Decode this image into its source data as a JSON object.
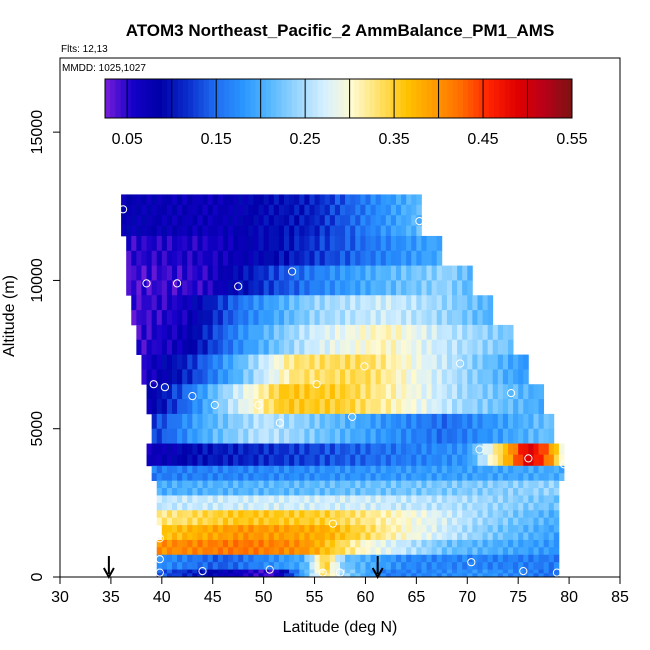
{
  "chart_data": {
    "type": "heatmap",
    "title": "ATOM3 Northeast_Pacific_2 AmmBalance_PM1_AMS",
    "flights_label": "Flts: 12,13",
    "dates_label": "MMDD: 1025,1027",
    "xlabel": "Latitude (deg N)",
    "ylabel": "Altitude (m)",
    "xlim": [
      30,
      85
    ],
    "ylim": [
      0,
      17500
    ],
    "x_ticks": [
      "30",
      "35",
      "40",
      "45",
      "50",
      "55",
      "60",
      "65",
      "70",
      "75",
      "80",
      "85"
    ],
    "y_ticks": [
      "0",
      "5000",
      "10000",
      "15000"
    ],
    "colorbar": {
      "min": 0.025,
      "max": 0.55,
      "tick_values": [
        0.05,
        0.15,
        0.25,
        0.35,
        0.45,
        0.55
      ],
      "tick_labels": [
        "0.05",
        "0.15",
        "0.25",
        "0.35",
        "0.45",
        "0.55"
      ],
      "colors": [
        "#7a1fd9",
        "#1500c8",
        "#0000a8",
        "#0a2ccc",
        "#1f6cf0",
        "#2a95ff",
        "#55b8ff",
        "#9ad6ff",
        "#d6f0ff",
        "#fffad0",
        "#ffe066",
        "#ffc200",
        "#ff9a00",
        "#ff6a00",
        "#ff2200",
        "#e00000",
        "#b80018",
        "#7a1414"
      ]
    },
    "extent": {
      "top_band_altitude": [
        12500,
        11500,
        10500,
        9500,
        8500,
        7500,
        6500,
        5500,
        4500,
        3750,
        3250,
        2750,
        2250,
        1750,
        1250,
        750,
        250
      ],
      "lat_start": [
        36.0,
        36.5,
        36.5,
        37.0,
        37.5,
        38.0,
        38.5,
        39.0,
        38.5,
        39.0,
        39.5,
        39.5,
        39.5,
        40.0,
        39.5,
        39.5,
        39.5
      ],
      "lat_end": [
        65.5,
        67.5,
        70.5,
        72.5,
        74.5,
        76.0,
        77.5,
        78.5,
        79.5,
        79.5,
        79.0,
        79.0,
        79.0,
        79.0,
        79.0,
        79.0,
        79.0
      ]
    },
    "flight_points": [
      {
        "lat": 36.2,
        "alt": 12400
      },
      {
        "lat": 65.3,
        "alt": 12000
      },
      {
        "lat": 72.2,
        "alt": 10300
      },
      {
        "lat": 52.8,
        "alt": 10300
      },
      {
        "lat": 38.5,
        "alt": 9900
      },
      {
        "lat": 41.5,
        "alt": 9900
      },
      {
        "lat": 47.5,
        "alt": 9800
      },
      {
        "lat": 37.3,
        "alt": 7200
      },
      {
        "lat": 59.9,
        "alt": 7100
      },
      {
        "lat": 69.3,
        "alt": 7200
      },
      {
        "lat": 39.2,
        "alt": 6500
      },
      {
        "lat": 40.3,
        "alt": 6400
      },
      {
        "lat": 55.2,
        "alt": 6500
      },
      {
        "lat": 43.0,
        "alt": 6100
      },
      {
        "lat": 45.2,
        "alt": 5800
      },
      {
        "lat": 49.5,
        "alt": 5800
      },
      {
        "lat": 74.3,
        "alt": 6200
      },
      {
        "lat": 58.7,
        "alt": 5400
      },
      {
        "lat": 51.6,
        "alt": 5200
      },
      {
        "lat": 38.2,
        "alt": 4600
      },
      {
        "lat": 71.2,
        "alt": 4300
      },
      {
        "lat": 76.0,
        "alt": 4000
      },
      {
        "lat": 79.5,
        "alt": 3800
      },
      {
        "lat": 56.8,
        "alt": 1800
      },
      {
        "lat": 39.8,
        "alt": 1300
      },
      {
        "lat": 39.8,
        "alt": 600
      },
      {
        "lat": 39.8,
        "alt": 150
      },
      {
        "lat": 44.0,
        "alt": 200
      },
      {
        "lat": 50.6,
        "alt": 250
      },
      {
        "lat": 55.8,
        "alt": 150
      },
      {
        "lat": 57.5,
        "alt": 150
      },
      {
        "lat": 70.4,
        "alt": 500
      },
      {
        "lat": 75.5,
        "alt": 200
      },
      {
        "lat": 78.8,
        "alt": 150
      }
    ],
    "arrows": [
      {
        "lat": 34.8
      },
      {
        "lat": 61.2
      }
    ]
  }
}
